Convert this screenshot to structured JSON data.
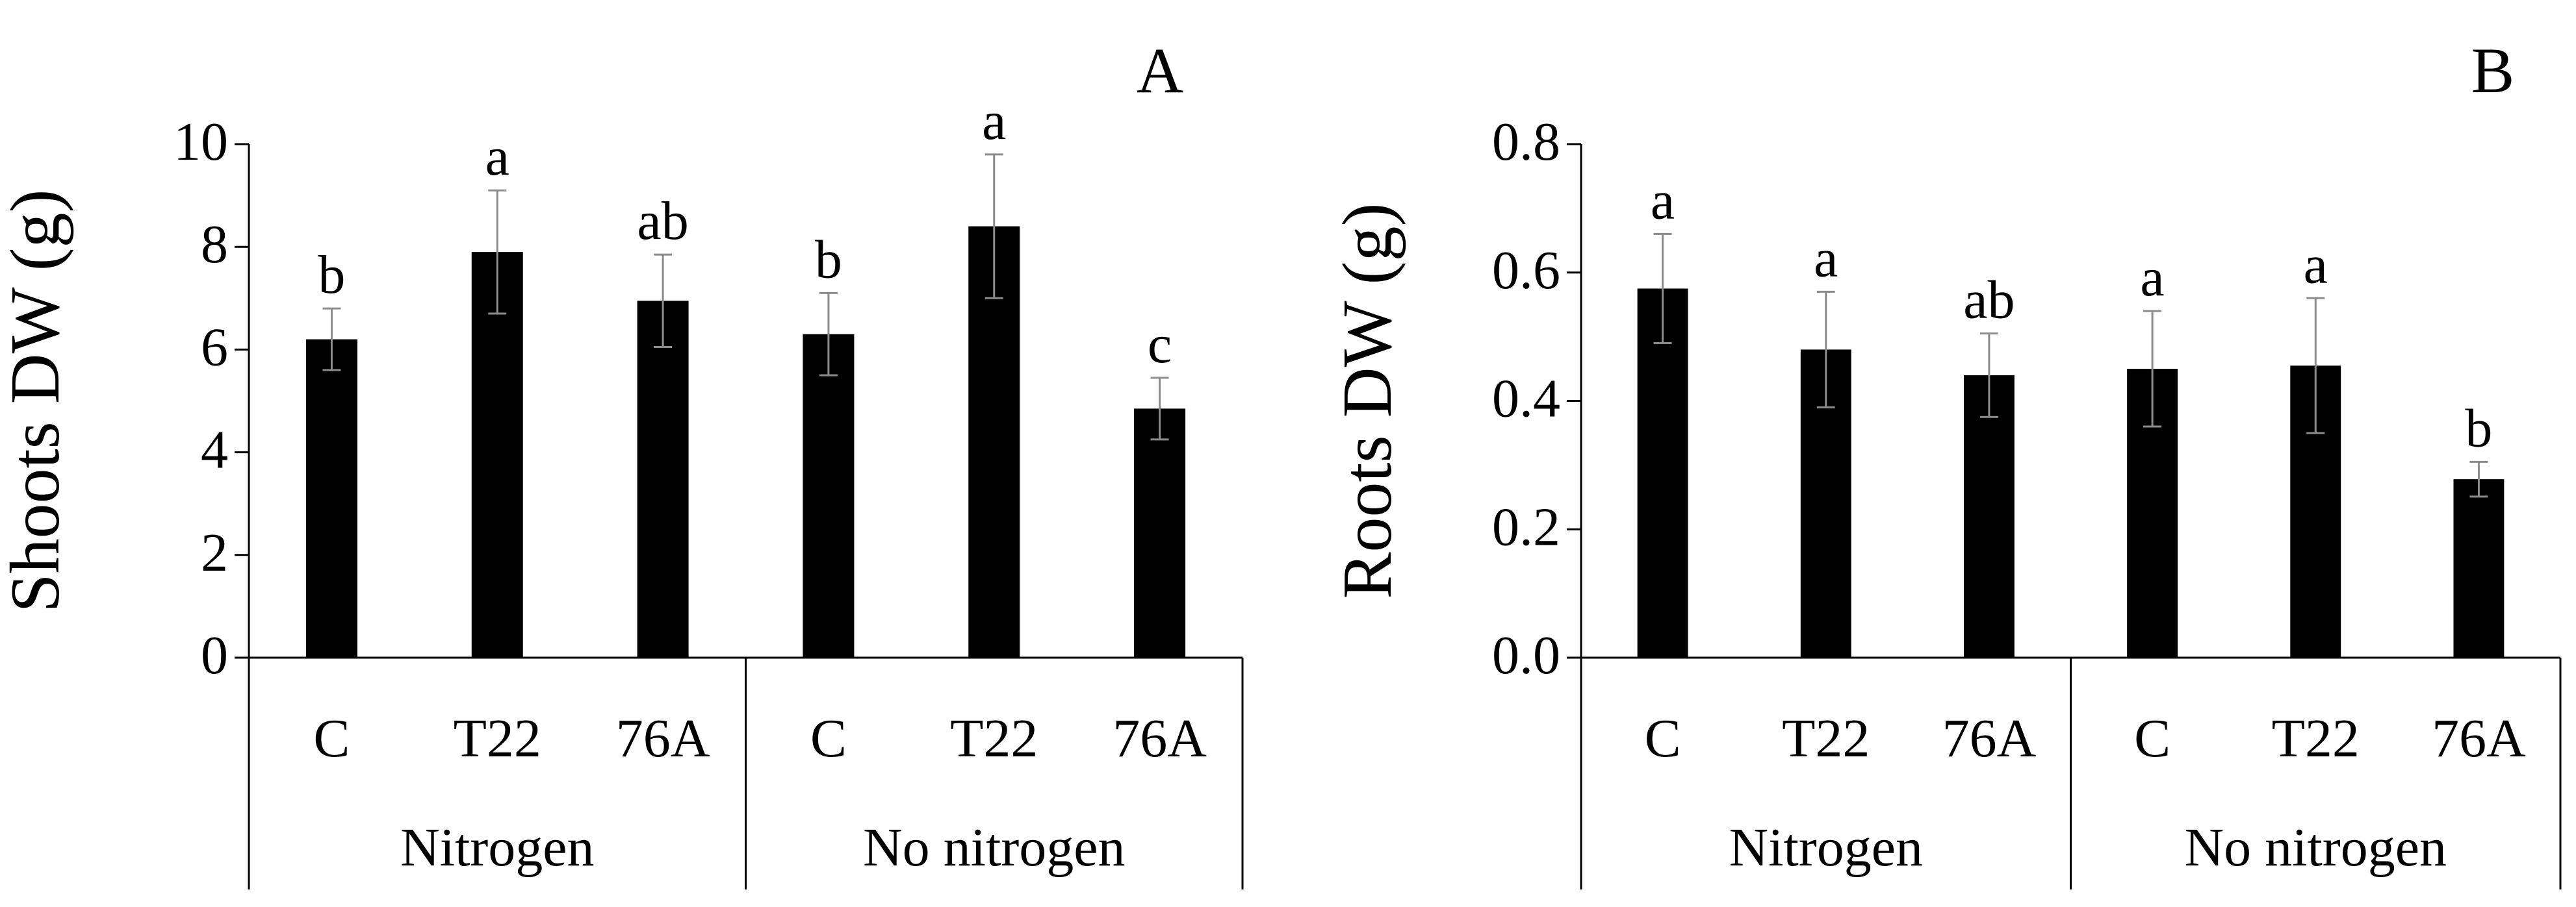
{
  "chart_data": [
    {
      "panel": "A",
      "type": "bar",
      "ylabel": "Shoots DW (g)",
      "ylim": [
        0,
        10
      ],
      "yticks": [
        0,
        2,
        4,
        6,
        8,
        10
      ],
      "ytick_labels": [
        "0",
        "2",
        "4",
        "6",
        "8",
        "10"
      ],
      "categories": [
        "C",
        "T22",
        "76A",
        "C",
        "T22",
        "76A"
      ],
      "groups": [
        {
          "label": "Nitrogen",
          "span": [
            0,
            2
          ]
        },
        {
          "label": "No nitrogen",
          "span": [
            3,
            5
          ]
        }
      ],
      "values": [
        6.2,
        7.9,
        6.95,
        6.3,
        8.4,
        4.85
      ],
      "errors": [
        0.6,
        1.2,
        0.9,
        0.8,
        1.4,
        0.6
      ],
      "letters": [
        "b",
        "a",
        "ab",
        "b",
        "a",
        "c"
      ],
      "bar_color": "#000000",
      "error_color": "#8c8c8c"
    },
    {
      "panel": "B",
      "type": "bar",
      "ylabel": "Roots DW (g)",
      "ylim": [
        0,
        0.8
      ],
      "yticks": [
        0,
        0.2,
        0.4,
        0.6,
        0.8
      ],
      "ytick_labels": [
        "0.0",
        "0.2",
        "0.4",
        "0.6",
        "0.8"
      ],
      "categories": [
        "C",
        "T22",
        "76A",
        "C",
        "T22",
        "76A"
      ],
      "groups": [
        {
          "label": "Nitrogen",
          "span": [
            0,
            2
          ]
        },
        {
          "label": "No nitrogen",
          "span": [
            3,
            5
          ]
        }
      ],
      "values": [
        0.575,
        0.48,
        0.44,
        0.45,
        0.455,
        0.278
      ],
      "errors": [
        0.085,
        0.09,
        0.065,
        0.09,
        0.105,
        0.027
      ],
      "letters": [
        "a",
        "a",
        "ab",
        "a",
        "a",
        "b"
      ],
      "bar_color": "#000000",
      "error_color": "#8c8c8c"
    }
  ]
}
